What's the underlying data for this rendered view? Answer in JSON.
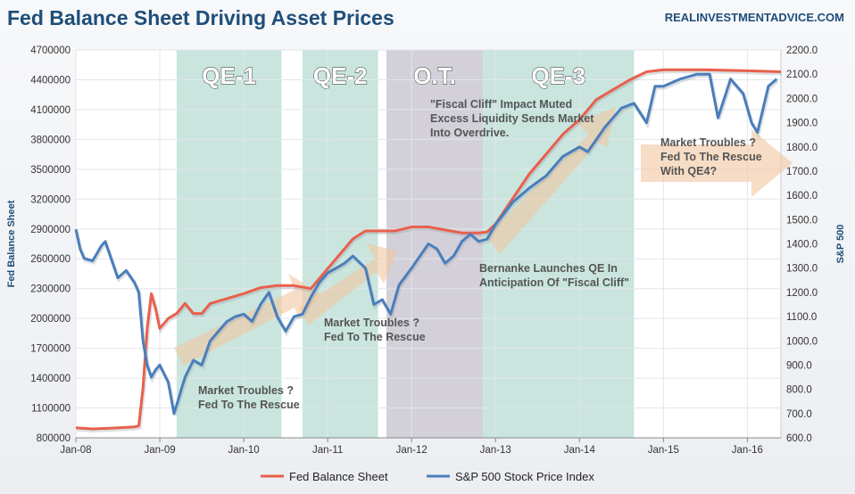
{
  "header": {
    "title": "Fed Balance Sheet Driving Asset Prices",
    "site": "REALINVESTMENTADVICE.COM"
  },
  "chart_data": {
    "type": "line",
    "title": "Fed Balance Sheet Driving Asset Prices",
    "x_ticks": [
      "Jan-08",
      "Jan-09",
      "Jan-10",
      "Jan-11",
      "Jan-12",
      "Jan-13",
      "Jan-14",
      "Jan-15",
      "Jan-16"
    ],
    "x_range": [
      2008.0,
      2016.4
    ],
    "y_left": {
      "label": "Fed Balance Sheet",
      "range": [
        800000,
        4700000
      ],
      "ticks": [
        "4700000",
        "4400000",
        "4100000",
        "3800000",
        "3500000",
        "3200000",
        "2900000",
        "2600000",
        "2300000",
        "2000000",
        "1700000",
        "1400000",
        "1100000",
        "800000"
      ]
    },
    "y_right": {
      "label": "S&P 500",
      "range": [
        600,
        2200
      ],
      "ticks": [
        "2200.0",
        "2100.0",
        "2000.0",
        "1900.0",
        "1800.0",
        "1700.0",
        "1600.0",
        "1500.0",
        "1400.0",
        "1300.0",
        "1200.0",
        "1100.0",
        "1000.0",
        "900.0",
        "800.0",
        "700.0",
        "600.0"
      ]
    },
    "series": [
      {
        "name": "Fed Balance Sheet",
        "color": "#e8604c",
        "axis": "left",
        "points": [
          [
            2008.0,
            900000
          ],
          [
            2008.2,
            890000
          ],
          [
            2008.5,
            900000
          ],
          [
            2008.7,
            910000
          ],
          [
            2008.75,
            920000
          ],
          [
            2008.8,
            1300000
          ],
          [
            2008.85,
            1900000
          ],
          [
            2008.9,
            2250000
          ],
          [
            2008.95,
            2100000
          ],
          [
            2009.0,
            1900000
          ],
          [
            2009.1,
            2000000
          ],
          [
            2009.2,
            2050000
          ],
          [
            2009.3,
            2150000
          ],
          [
            2009.4,
            2050000
          ],
          [
            2009.5,
            2050000
          ],
          [
            2009.6,
            2150000
          ],
          [
            2009.8,
            2200000
          ],
          [
            2010.0,
            2250000
          ],
          [
            2010.2,
            2310000
          ],
          [
            2010.4,
            2330000
          ],
          [
            2010.6,
            2330000
          ],
          [
            2010.8,
            2300000
          ],
          [
            2010.9,
            2400000
          ],
          [
            2011.1,
            2600000
          ],
          [
            2011.3,
            2800000
          ],
          [
            2011.45,
            2880000
          ],
          [
            2011.6,
            2880000
          ],
          [
            2011.8,
            2880000
          ],
          [
            2011.9,
            2900000
          ],
          [
            2012.0,
            2920000
          ],
          [
            2012.2,
            2920000
          ],
          [
            2012.4,
            2890000
          ],
          [
            2012.6,
            2860000
          ],
          [
            2012.8,
            2860000
          ],
          [
            2012.9,
            2870000
          ],
          [
            2013.0,
            2950000
          ],
          [
            2013.2,
            3200000
          ],
          [
            2013.4,
            3450000
          ],
          [
            2013.6,
            3650000
          ],
          [
            2013.8,
            3850000
          ],
          [
            2014.0,
            4000000
          ],
          [
            2014.2,
            4200000
          ],
          [
            2014.4,
            4300000
          ],
          [
            2014.6,
            4400000
          ],
          [
            2014.8,
            4480000
          ],
          [
            2015.0,
            4500000
          ],
          [
            2015.5,
            4500000
          ],
          [
            2016.0,
            4490000
          ],
          [
            2016.4,
            4480000
          ]
        ]
      },
      {
        "name": "S&P 500 Stock Price Index",
        "color": "#4a7ebb",
        "axis": "right",
        "points": [
          [
            2008.0,
            1460
          ],
          [
            2008.05,
            1380
          ],
          [
            2008.1,
            1340
          ],
          [
            2008.2,
            1330
          ],
          [
            2008.3,
            1390
          ],
          [
            2008.35,
            1410
          ],
          [
            2008.4,
            1360
          ],
          [
            2008.5,
            1260
          ],
          [
            2008.6,
            1290
          ],
          [
            2008.7,
            1240
          ],
          [
            2008.75,
            1200
          ],
          [
            2008.8,
            1000
          ],
          [
            2008.85,
            900
          ],
          [
            2008.9,
            850
          ],
          [
            2008.95,
            880
          ],
          [
            2009.0,
            900
          ],
          [
            2009.1,
            830
          ],
          [
            2009.17,
            700
          ],
          [
            2009.3,
            850
          ],
          [
            2009.4,
            920
          ],
          [
            2009.5,
            900
          ],
          [
            2009.6,
            1000
          ],
          [
            2009.7,
            1040
          ],
          [
            2009.8,
            1080
          ],
          [
            2009.9,
            1100
          ],
          [
            2010.0,
            1110
          ],
          [
            2010.1,
            1080
          ],
          [
            2010.2,
            1150
          ],
          [
            2010.3,
            1200
          ],
          [
            2010.4,
            1100
          ],
          [
            2010.5,
            1040
          ],
          [
            2010.6,
            1100
          ],
          [
            2010.7,
            1110
          ],
          [
            2010.8,
            1180
          ],
          [
            2010.9,
            1240
          ],
          [
            2011.0,
            1280
          ],
          [
            2011.2,
            1320
          ],
          [
            2011.3,
            1350
          ],
          [
            2011.45,
            1300
          ],
          [
            2011.55,
            1150
          ],
          [
            2011.65,
            1170
          ],
          [
            2011.75,
            1110
          ],
          [
            2011.85,
            1230
          ],
          [
            2012.0,
            1300
          ],
          [
            2012.2,
            1400
          ],
          [
            2012.3,
            1380
          ],
          [
            2012.4,
            1320
          ],
          [
            2012.5,
            1350
          ],
          [
            2012.6,
            1410
          ],
          [
            2012.7,
            1440
          ],
          [
            2012.8,
            1410
          ],
          [
            2012.9,
            1420
          ],
          [
            2013.0,
            1480
          ],
          [
            2013.2,
            1570
          ],
          [
            2013.4,
            1630
          ],
          [
            2013.6,
            1680
          ],
          [
            2013.8,
            1760
          ],
          [
            2014.0,
            1800
          ],
          [
            2014.1,
            1780
          ],
          [
            2014.3,
            1880
          ],
          [
            2014.5,
            1960
          ],
          [
            2014.65,
            1980
          ],
          [
            2014.8,
            1900
          ],
          [
            2014.9,
            2050
          ],
          [
            2015.0,
            2050
          ],
          [
            2015.2,
            2080
          ],
          [
            2015.4,
            2100
          ],
          [
            2015.55,
            2100
          ],
          [
            2015.65,
            1920
          ],
          [
            2015.8,
            2080
          ],
          [
            2015.95,
            2020
          ],
          [
            2016.05,
            1900
          ],
          [
            2016.12,
            1860
          ],
          [
            2016.25,
            2050
          ],
          [
            2016.35,
            2080
          ]
        ]
      }
    ],
    "bands": [
      {
        "label": "QE-1",
        "start": 2009.2,
        "end": 2010.45,
        "color": "#bfe0d8"
      },
      {
        "label": "QE-2",
        "start": 2010.7,
        "end": 2011.6,
        "color": "#bfe0d8"
      },
      {
        "label": "O.T.",
        "start": 2011.7,
        "end": 2012.85,
        "color": "#cbc8d2"
      },
      {
        "label": "QE-3",
        "start": 2012.85,
        "end": 2014.65,
        "color": "#bfe0d8"
      }
    ],
    "annotations": [
      {
        "lines": [
          "Market Troubles ?",
          "Fed To The Rescue"
        ]
      },
      {
        "lines": [
          "Market Troubles ?",
          "Fed To The Rescue"
        ]
      },
      {
        "lines": [
          "\"Fiscal Cliff\" Impact Muted",
          "Excess Liquidity Sends Market",
          "Into Overdrive."
        ]
      },
      {
        "lines": [
          "Bernanke Launches QE In",
          "Anticipation Of \"Fiscal Cliff\""
        ]
      },
      {
        "lines": [
          "Market Troubles ?",
          "Fed To The Rescue",
          "With QE4?"
        ]
      }
    ]
  }
}
